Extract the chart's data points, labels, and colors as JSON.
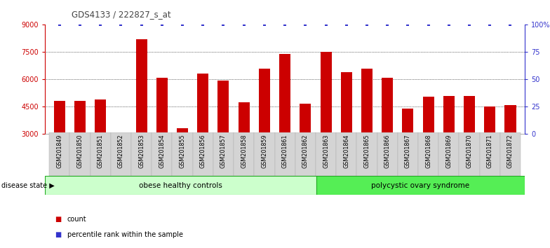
{
  "title": "GDS4133 / 222827_s_at",
  "categories": [
    "GSM201849",
    "GSM201850",
    "GSM201851",
    "GSM201852",
    "GSM201853",
    "GSM201854",
    "GSM201855",
    "GSM201856",
    "GSM201857",
    "GSM201858",
    "GSM201859",
    "GSM201861",
    "GSM201862",
    "GSM201863",
    "GSM201864",
    "GSM201865",
    "GSM201866",
    "GSM201867",
    "GSM201868",
    "GSM201869",
    "GSM201870",
    "GSM201871",
    "GSM201872"
  ],
  "values": [
    4800,
    4800,
    4900,
    3060,
    8200,
    6100,
    3300,
    6300,
    5950,
    4750,
    6600,
    7400,
    4650,
    7500,
    6400,
    6600,
    6100,
    4400,
    5050,
    5100,
    5100,
    4500,
    4600
  ],
  "bar_color": "#cc0000",
  "percentile_color": "#3333cc",
  "ylim_left": [
    3000,
    9000
  ],
  "ylim_right": [
    0,
    100
  ],
  "yticks_left": [
    3000,
    4500,
    6000,
    7500,
    9000
  ],
  "yticks_right": [
    0,
    25,
    50,
    75,
    100
  ],
  "ytick_labels_right": [
    "0",
    "25",
    "50",
    "75",
    "100%"
  ],
  "group1_label": "obese healthy controls",
  "group2_label": "polycystic ovary syndrome",
  "group1_count": 13,
  "group2_count": 10,
  "disease_state_label": "disease state",
  "legend_count_label": "count",
  "legend_percentile_label": "percentile rank within the sample",
  "background_color": "#ffffff",
  "group1_color": "#ccffcc",
  "group2_color": "#55ee55",
  "tick_area_color": "#d4d4d4",
  "title_color": "#444444",
  "bar_bottom": 3000,
  "dotted_lines": [
    4500,
    6000,
    7500
  ]
}
